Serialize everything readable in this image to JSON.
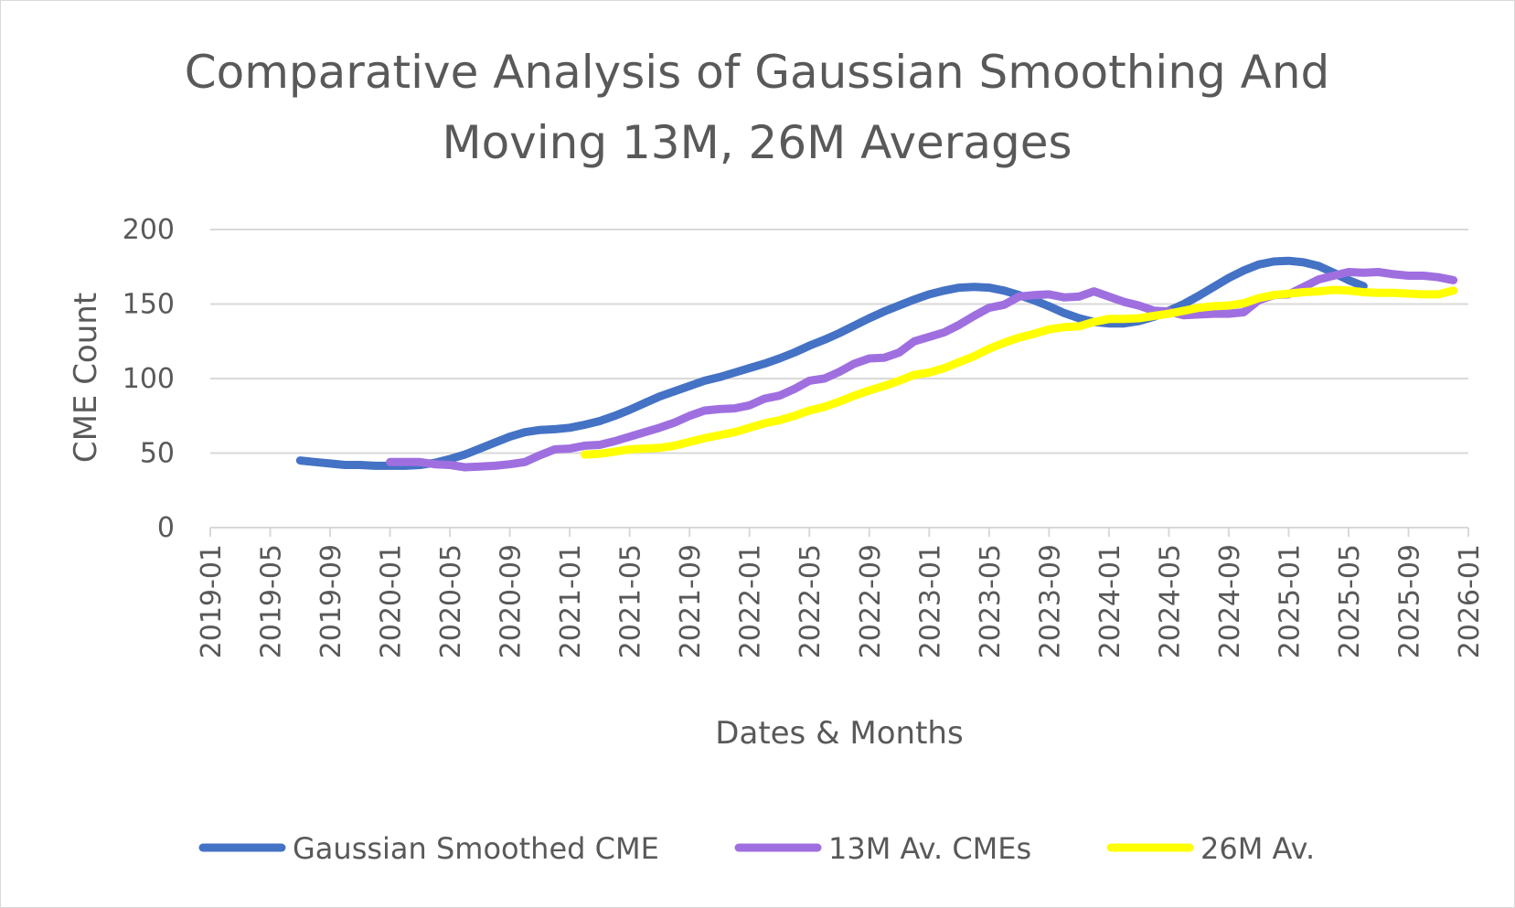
{
  "chart_data": {
    "type": "line",
    "title_lines": [
      "Comparative Analysis of Gaussian Smoothing And",
      "Moving 13M, 26M Averages"
    ],
    "xlabel": "Dates & Months",
    "ylabel": "CME Count",
    "ylim": [
      0,
      200
    ],
    "y_ticks": [
      "0",
      "50",
      "100",
      "150",
      "200"
    ],
    "x_ticks": [
      "2019-01",
      "2019-05",
      "2019-09",
      "2020-01",
      "2020-05",
      "2020-09",
      "2021-01",
      "2021-05",
      "2021-09",
      "2022-01",
      "2022-05",
      "2022-09",
      "2023-01",
      "2023-05",
      "2023-09",
      "2024-01",
      "2024-05",
      "2024-09",
      "2025-01",
      "2025-05",
      "2025-09",
      "2026-01"
    ],
    "x_range": [
      "2019-01",
      "2026-01"
    ],
    "grid": "horizontal",
    "legend_position": "bottom",
    "series": [
      {
        "name": "Gaussian Smoothed CME",
        "color": "#4472C4",
        "points": [
          [
            "2019-07",
            45
          ],
          [
            "2019-08",
            44
          ],
          [
            "2019-09",
            43
          ],
          [
            "2019-10",
            42
          ],
          [
            "2019-11",
            42
          ],
          [
            "2019-12",
            41.5
          ],
          [
            "2020-01",
            41.5
          ],
          [
            "2020-02",
            41.5
          ],
          [
            "2020-03",
            42
          ],
          [
            "2020-04",
            43.5
          ],
          [
            "2020-05",
            46
          ],
          [
            "2020-06",
            49
          ],
          [
            "2020-07",
            53
          ],
          [
            "2020-08",
            57
          ],
          [
            "2020-09",
            61
          ],
          [
            "2020-10",
            64
          ],
          [
            "2020-11",
            65.5
          ],
          [
            "2020-12",
            66
          ],
          [
            "2021-01",
            67
          ],
          [
            "2021-02",
            69
          ],
          [
            "2021-03",
            71.5
          ],
          [
            "2021-04",
            75
          ],
          [
            "2021-05",
            79
          ],
          [
            "2021-06",
            83.5
          ],
          [
            "2021-07",
            88
          ],
          [
            "2021-08",
            91.5
          ],
          [
            "2021-09",
            95
          ],
          [
            "2021-10",
            98.5
          ],
          [
            "2021-11",
            101
          ],
          [
            "2021-12",
            104
          ],
          [
            "2022-01",
            107
          ],
          [
            "2022-02",
            110
          ],
          [
            "2022-03",
            113.5
          ],
          [
            "2022-04",
            117.5
          ],
          [
            "2022-05",
            122
          ],
          [
            "2022-06",
            126
          ],
          [
            "2022-07",
            130.5
          ],
          [
            "2022-08",
            135.5
          ],
          [
            "2022-09",
            140.5
          ],
          [
            "2022-10",
            145
          ],
          [
            "2022-11",
            149
          ],
          [
            "2022-12",
            153
          ],
          [
            "2023-01",
            156.5
          ],
          [
            "2023-02",
            159
          ],
          [
            "2023-03",
            161
          ],
          [
            "2023-04",
            161.5
          ],
          [
            "2023-05",
            161
          ],
          [
            "2023-06",
            159
          ],
          [
            "2023-07",
            156
          ],
          [
            "2023-08",
            152.5
          ],
          [
            "2023-09",
            148.5
          ],
          [
            "2023-10",
            144
          ],
          [
            "2023-11",
            140.5
          ],
          [
            "2023-12",
            138
          ],
          [
            "2024-01",
            137
          ],
          [
            "2024-02",
            137
          ],
          [
            "2024-03",
            138.5
          ],
          [
            "2024-04",
            141.5
          ],
          [
            "2024-05",
            145.5
          ],
          [
            "2024-06",
            150
          ],
          [
            "2024-07",
            155.5
          ],
          [
            "2024-08",
            161.5
          ],
          [
            "2024-09",
            167.5
          ],
          [
            "2024-10",
            172.5
          ],
          [
            "2024-11",
            176.5
          ],
          [
            "2024-12",
            178.5
          ],
          [
            "2025-01",
            179
          ],
          [
            "2025-02",
            178
          ],
          [
            "2025-03",
            175.5
          ],
          [
            "2025-04",
            171
          ],
          [
            "2025-05",
            166
          ],
          [
            "2025-06",
            162
          ]
        ]
      },
      {
        "name": "13M Av. CMEs",
        "color": "#9F6FE0",
        "points": [
          [
            "2020-01",
            44
          ],
          [
            "2020-02",
            44
          ],
          [
            "2020-03",
            44
          ],
          [
            "2020-04",
            42.5
          ],
          [
            "2020-05",
            42
          ],
          [
            "2020-06",
            40.5
          ],
          [
            "2020-07",
            41
          ],
          [
            "2020-08",
            41.5
          ],
          [
            "2020-09",
            42.5
          ],
          [
            "2020-10",
            44
          ],
          [
            "2020-11",
            48.5
          ],
          [
            "2020-12",
            52.5
          ],
          [
            "2021-01",
            53
          ],
          [
            "2021-02",
            55
          ],
          [
            "2021-03",
            55.5
          ],
          [
            "2021-04",
            58
          ],
          [
            "2021-05",
            61
          ],
          [
            "2021-06",
            64
          ],
          [
            "2021-07",
            67
          ],
          [
            "2021-08",
            70.5
          ],
          [
            "2021-09",
            75
          ],
          [
            "2021-10",
            78.5
          ],
          [
            "2021-11",
            79.5
          ],
          [
            "2021-12",
            80
          ],
          [
            "2022-01",
            82
          ],
          [
            "2022-02",
            86.5
          ],
          [
            "2022-03",
            88.5
          ],
          [
            "2022-04",
            93
          ],
          [
            "2022-05",
            98.5
          ],
          [
            "2022-06",
            100
          ],
          [
            "2022-07",
            104.5
          ],
          [
            "2022-08",
            110
          ],
          [
            "2022-09",
            113.5
          ],
          [
            "2022-10",
            114
          ],
          [
            "2022-11",
            117.5
          ],
          [
            "2022-12",
            125
          ],
          [
            "2023-01",
            128
          ],
          [
            "2023-02",
            131
          ],
          [
            "2023-03",
            136
          ],
          [
            "2023-04",
            142
          ],
          [
            "2023-05",
            147.5
          ],
          [
            "2023-06",
            149.5
          ],
          [
            "2023-07",
            155
          ],
          [
            "2023-08",
            156
          ],
          [
            "2023-09",
            156.5
          ],
          [
            "2023-10",
            154.5
          ],
          [
            "2023-11",
            155
          ],
          [
            "2023-12",
            158.5
          ],
          [
            "2024-01",
            155
          ],
          [
            "2024-02",
            151.5
          ],
          [
            "2024-03",
            149
          ],
          [
            "2024-04",
            145.5
          ],
          [
            "2024-05",
            145
          ],
          [
            "2024-06",
            142.5
          ],
          [
            "2024-07",
            143
          ],
          [
            "2024-08",
            143.5
          ],
          [
            "2024-09",
            143.5
          ],
          [
            "2024-10",
            144.5
          ],
          [
            "2024-11",
            152.5
          ],
          [
            "2024-12",
            156
          ],
          [
            "2025-01",
            156.5
          ],
          [
            "2025-02",
            161.5
          ],
          [
            "2025-03",
            166.5
          ],
          [
            "2025-04",
            169
          ],
          [
            "2025-05",
            171.5
          ],
          [
            "2025-06",
            171
          ],
          [
            "2025-07",
            171.5
          ],
          [
            "2025-08",
            170
          ],
          [
            "2025-09",
            169
          ],
          [
            "2025-10",
            169
          ],
          [
            "2025-11",
            168
          ],
          [
            "2025-12",
            166
          ]
        ]
      },
      {
        "name": "26M Av.",
        "color": "#FFFF00",
        "points": [
          [
            "2021-02",
            49
          ],
          [
            "2021-03",
            49.5
          ],
          [
            "2021-04",
            51
          ],
          [
            "2021-05",
            52.5
          ],
          [
            "2021-06",
            53
          ],
          [
            "2021-07",
            53.5
          ],
          [
            "2021-08",
            55
          ],
          [
            "2021-09",
            57.5
          ],
          [
            "2021-10",
            60
          ],
          [
            "2021-11",
            62
          ],
          [
            "2021-12",
            64
          ],
          [
            "2022-01",
            67
          ],
          [
            "2022-02",
            70
          ],
          [
            "2022-03",
            72
          ],
          [
            "2022-04",
            75
          ],
          [
            "2022-05",
            78.5
          ],
          [
            "2022-06",
            81
          ],
          [
            "2022-07",
            84.5
          ],
          [
            "2022-08",
            88.5
          ],
          [
            "2022-09",
            92
          ],
          [
            "2022-10",
            95
          ],
          [
            "2022-11",
            98.5
          ],
          [
            "2022-12",
            102.5
          ],
          [
            "2023-01",
            104
          ],
          [
            "2023-02",
            107
          ],
          [
            "2023-03",
            111
          ],
          [
            "2023-04",
            115
          ],
          [
            "2023-05",
            120
          ],
          [
            "2023-06",
            124
          ],
          [
            "2023-07",
            127.5
          ],
          [
            "2023-08",
            130
          ],
          [
            "2023-09",
            133
          ],
          [
            "2023-10",
            134.5
          ],
          [
            "2023-11",
            135
          ],
          [
            "2023-12",
            138
          ],
          [
            "2024-01",
            140
          ],
          [
            "2024-02",
            140
          ],
          [
            "2024-03",
            140.5
          ],
          [
            "2024-04",
            142
          ],
          [
            "2024-05",
            143.5
          ],
          [
            "2024-06",
            145.5
          ],
          [
            "2024-07",
            147.5
          ],
          [
            "2024-08",
            148.5
          ],
          [
            "2024-09",
            149
          ],
          [
            "2024-10",
            150.5
          ],
          [
            "2024-11",
            154
          ],
          [
            "2024-12",
            156
          ],
          [
            "2025-01",
            157
          ],
          [
            "2025-02",
            158
          ],
          [
            "2025-03",
            158.5
          ],
          [
            "2025-04",
            159.5
          ],
          [
            "2025-05",
            159
          ],
          [
            "2025-06",
            158
          ],
          [
            "2025-07",
            157.5
          ],
          [
            "2025-08",
            157.5
          ],
          [
            "2025-09",
            157
          ],
          [
            "2025-10",
            156.5
          ],
          [
            "2025-11",
            156.5
          ],
          [
            "2025-12",
            159
          ]
        ]
      }
    ]
  }
}
